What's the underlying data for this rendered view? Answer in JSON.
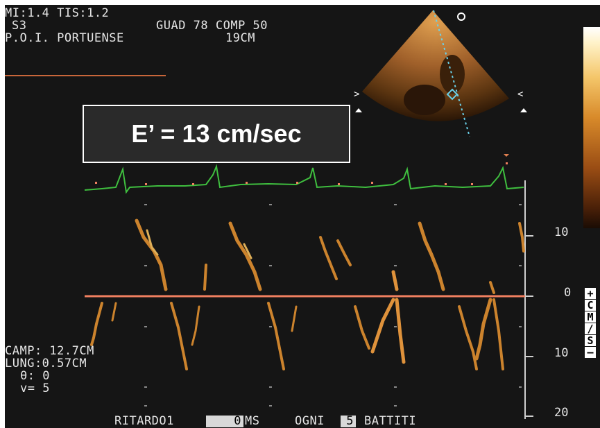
{
  "header": {
    "line1": "MI:1.4 TIS:1.2",
    "line2_left": "S3",
    "line2_right": "GUAD 78 COMP 50",
    "line3_left": "P.O.I. PORTUENSE",
    "line3_right": "19CM"
  },
  "callout": {
    "text": "E’ = 13 cm/sec"
  },
  "scale": {
    "labels": [
      "10",
      "0",
      "10",
      "20"
    ],
    "unit": [
      "+",
      "C",
      "M",
      "/",
      "S",
      "–"
    ]
  },
  "params": {
    "camp": "CAMP: 12.7CM",
    "lung": "LUNG:0.57CM",
    "theta": "θ: 0",
    "v": "v= 5"
  },
  "footer": {
    "ritardo_label": "RITARDO1",
    "ritardo_value": "0",
    "ms": "MS",
    "ogni": "OGNI",
    "ogni_value": "5",
    "battiti": "BATTITI"
  },
  "colors": {
    "background": "#151515",
    "ecg": "#3fbf3f",
    "baseline": "#f08060",
    "doppler": "#e09030",
    "sector_guide": "#6ad0e8"
  },
  "icons": {
    "probe_marker": "circle-marker-icon",
    "sector_left": "angle-bracket-icon",
    "sector_right": "angle-bracket-icon",
    "triangle": "triangle-marker-icon"
  }
}
